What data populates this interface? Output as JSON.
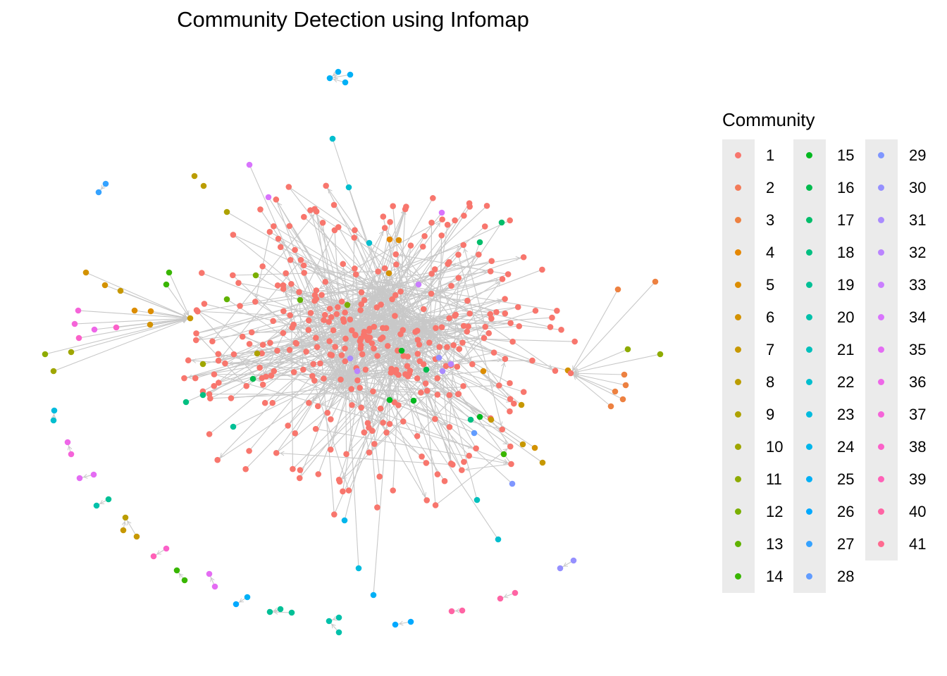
{
  "title": "Community Detection using Infomap",
  "legend": {
    "title": "Community",
    "items": [
      {
        "label": "1",
        "color": "#F8766D"
      },
      {
        "label": "2",
        "color": "#F37B59"
      },
      {
        "label": "3",
        "color": "#ED8141"
      },
      {
        "label": "4",
        "color": "#E58700"
      },
      {
        "label": "5",
        "color": "#DC8D00"
      },
      {
        "label": "6",
        "color": "#D39200"
      },
      {
        "label": "7",
        "color": "#C79800"
      },
      {
        "label": "8",
        "color": "#BB9D00"
      },
      {
        "label": "9",
        "color": "#AEA200"
      },
      {
        "label": "10",
        "color": "#9FA600"
      },
      {
        "label": "11",
        "color": "#8EAB00"
      },
      {
        "label": "12",
        "color": "#7AAF00"
      },
      {
        "label": "13",
        "color": "#60B200"
      },
      {
        "label": "14",
        "color": "#39B600"
      },
      {
        "label": "15",
        "color": "#00B81F"
      },
      {
        "label": "16",
        "color": "#00BB4E"
      },
      {
        "label": "17",
        "color": "#00BD6A"
      },
      {
        "label": "18",
        "color": "#00BF81"
      },
      {
        "label": "19",
        "color": "#00C096"
      },
      {
        "label": "20",
        "color": "#00C1AA"
      },
      {
        "label": "21",
        "color": "#00C0BC"
      },
      {
        "label": "22",
        "color": "#00BECE"
      },
      {
        "label": "23",
        "color": "#00BBDE"
      },
      {
        "label": "24",
        "color": "#00B6EB"
      },
      {
        "label": "25",
        "color": "#00B0F6"
      },
      {
        "label": "26",
        "color": "#00A9FF"
      },
      {
        "label": "27",
        "color": "#35A2FF"
      },
      {
        "label": "28",
        "color": "#619CFF"
      },
      {
        "label": "29",
        "color": "#7F96FF"
      },
      {
        "label": "30",
        "color": "#9590FF"
      },
      {
        "label": "31",
        "color": "#A98BFF"
      },
      {
        "label": "32",
        "color": "#BA84FF"
      },
      {
        "label": "33",
        "color": "#CA7EFF"
      },
      {
        "label": "34",
        "color": "#D874FD"
      },
      {
        "label": "35",
        "color": "#E46CF3"
      },
      {
        "label": "36",
        "color": "#EE67E8"
      },
      {
        "label": "37",
        "color": "#F564D9"
      },
      {
        "label": "38",
        "color": "#FB61C9"
      },
      {
        "label": "39",
        "color": "#FF61B7"
      },
      {
        "label": "40",
        "color": "#FF64A4"
      },
      {
        "label": "41",
        "color": "#FF6A90"
      }
    ]
  },
  "edge_color": "#c8c8c8"
}
